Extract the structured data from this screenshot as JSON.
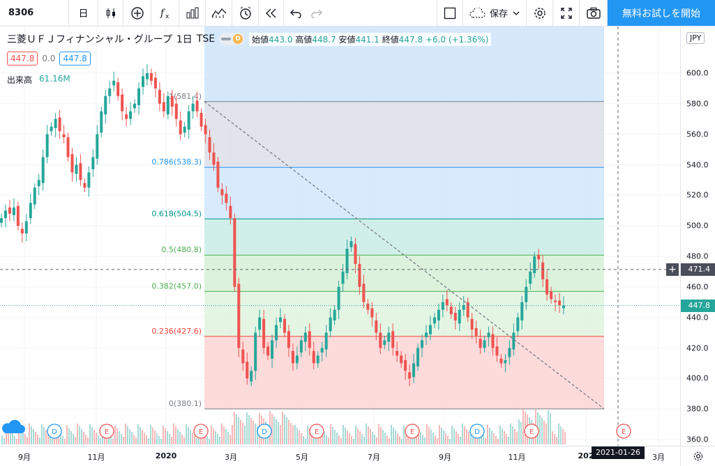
{
  "toolbar": {
    "symbol": "8306",
    "interval": "日",
    "save_label": "保存",
    "cta_label": "無料お試しを開始"
  },
  "legend": {
    "name": "三菱ＵＦＪフィナンシャル・グループ",
    "interval": "1日",
    "exchange": "TSE",
    "badge": "D",
    "open_label": "始値",
    "open": "443.0",
    "high_label": "高値",
    "high": "448.7",
    "low_label": "安値",
    "low": "441.1",
    "close_label": "終値",
    "close": "447.8",
    "change": "+6.0 (+1.36%)",
    "bid": "447.8",
    "spread": "0.0",
    "ask": "447.8",
    "volume_label": "出来高",
    "volume": "61.16M"
  },
  "yaxis": {
    "currency": "JPY",
    "ticks": [
      "600.0",
      "580.0",
      "560.0",
      "540.0",
      "520.0",
      "500.0",
      "480.0",
      "460.0",
      "440.0",
      "420.0",
      "400.0",
      "380.0",
      "360.0"
    ],
    "crosshair_label": "471.4",
    "last_price_label": "447.8"
  },
  "xaxis": {
    "ticks": [
      "9月",
      "11月",
      "2020",
      "3月",
      "5月",
      "7月",
      "9月",
      "11月",
      "202",
      "3月"
    ],
    "crosshair_label": "2021-01-26"
  },
  "fib": {
    "levels": [
      {
        "ratio": "1",
        "price": 581.4,
        "label": "1(581.4)"
      },
      {
        "ratio": "0.786",
        "price": 538.3,
        "label": "0.786(538.3)"
      },
      {
        "ratio": "0.618",
        "price": 504.5,
        "label": "0.618(504.5)"
      },
      {
        "ratio": "0.5",
        "price": 480.8,
        "label": "0.5(480.8)"
      },
      {
        "ratio": "0.382",
        "price": 457.0,
        "label": "0.382(457.0)"
      },
      {
        "ratio": "0.236",
        "price": 427.6,
        "label": "0.236(427.6)"
      },
      {
        "ratio": "0",
        "price": 380.1,
        "label": "0(380.1)"
      }
    ]
  },
  "events": [
    "D",
    "E",
    "E",
    "D",
    "E",
    "E",
    "D",
    "E",
    "E"
  ],
  "colors": {
    "up": "#26a69a",
    "down": "#ef5350",
    "accent": "#2196f3"
  },
  "chart_data": {
    "type": "candlestick",
    "series": [
      {
        "name": "三菱ＵＦＪフィナンシャル・グループ",
        "closes": [
          505,
          510,
          508,
          512,
          500,
          495,
          503,
          515,
          525,
          530,
          545,
          560,
          565,
          570,
          562,
          558,
          545,
          535,
          540,
          530,
          525,
          535,
          545,
          560,
          575,
          585,
          590,
          595,
          585,
          575,
          570,
          575,
          580,
          590,
          598,
          600,
          595,
          590,
          580,
          575,
          585,
          578,
          570,
          560,
          565,
          575,
          580,
          575,
          565,
          560,
          548,
          540,
          525,
          520,
          515,
          505,
          460,
          420,
          410,
          400,
          405,
          430,
          440,
          420,
          415,
          425,
          435,
          440,
          430,
          420,
          410,
          415,
          425,
          430,
          420,
          410,
          415,
          420,
          430,
          440,
          445,
          460,
          470,
          485,
          490,
          475,
          460,
          450,
          445,
          440,
          430,
          420,
          425,
          430,
          420,
          415,
          410,
          405,
          400,
          410,
          420,
          425,
          430,
          435,
          440,
          445,
          450,
          448,
          442,
          438,
          445,
          448,
          440,
          432,
          428,
          420,
          425,
          430,
          420,
          415,
          410,
          412,
          420,
          430,
          440,
          450,
          460,
          470,
          480,
          478,
          465,
          455,
          452,
          450,
          448,
          447.8
        ]
      }
    ],
    "fib_levels": [
      581.4,
      538.3,
      504.5,
      480.8,
      457.0,
      427.6,
      380.1
    ],
    "last": 447.8,
    "ylim": [
      360,
      605
    ]
  }
}
